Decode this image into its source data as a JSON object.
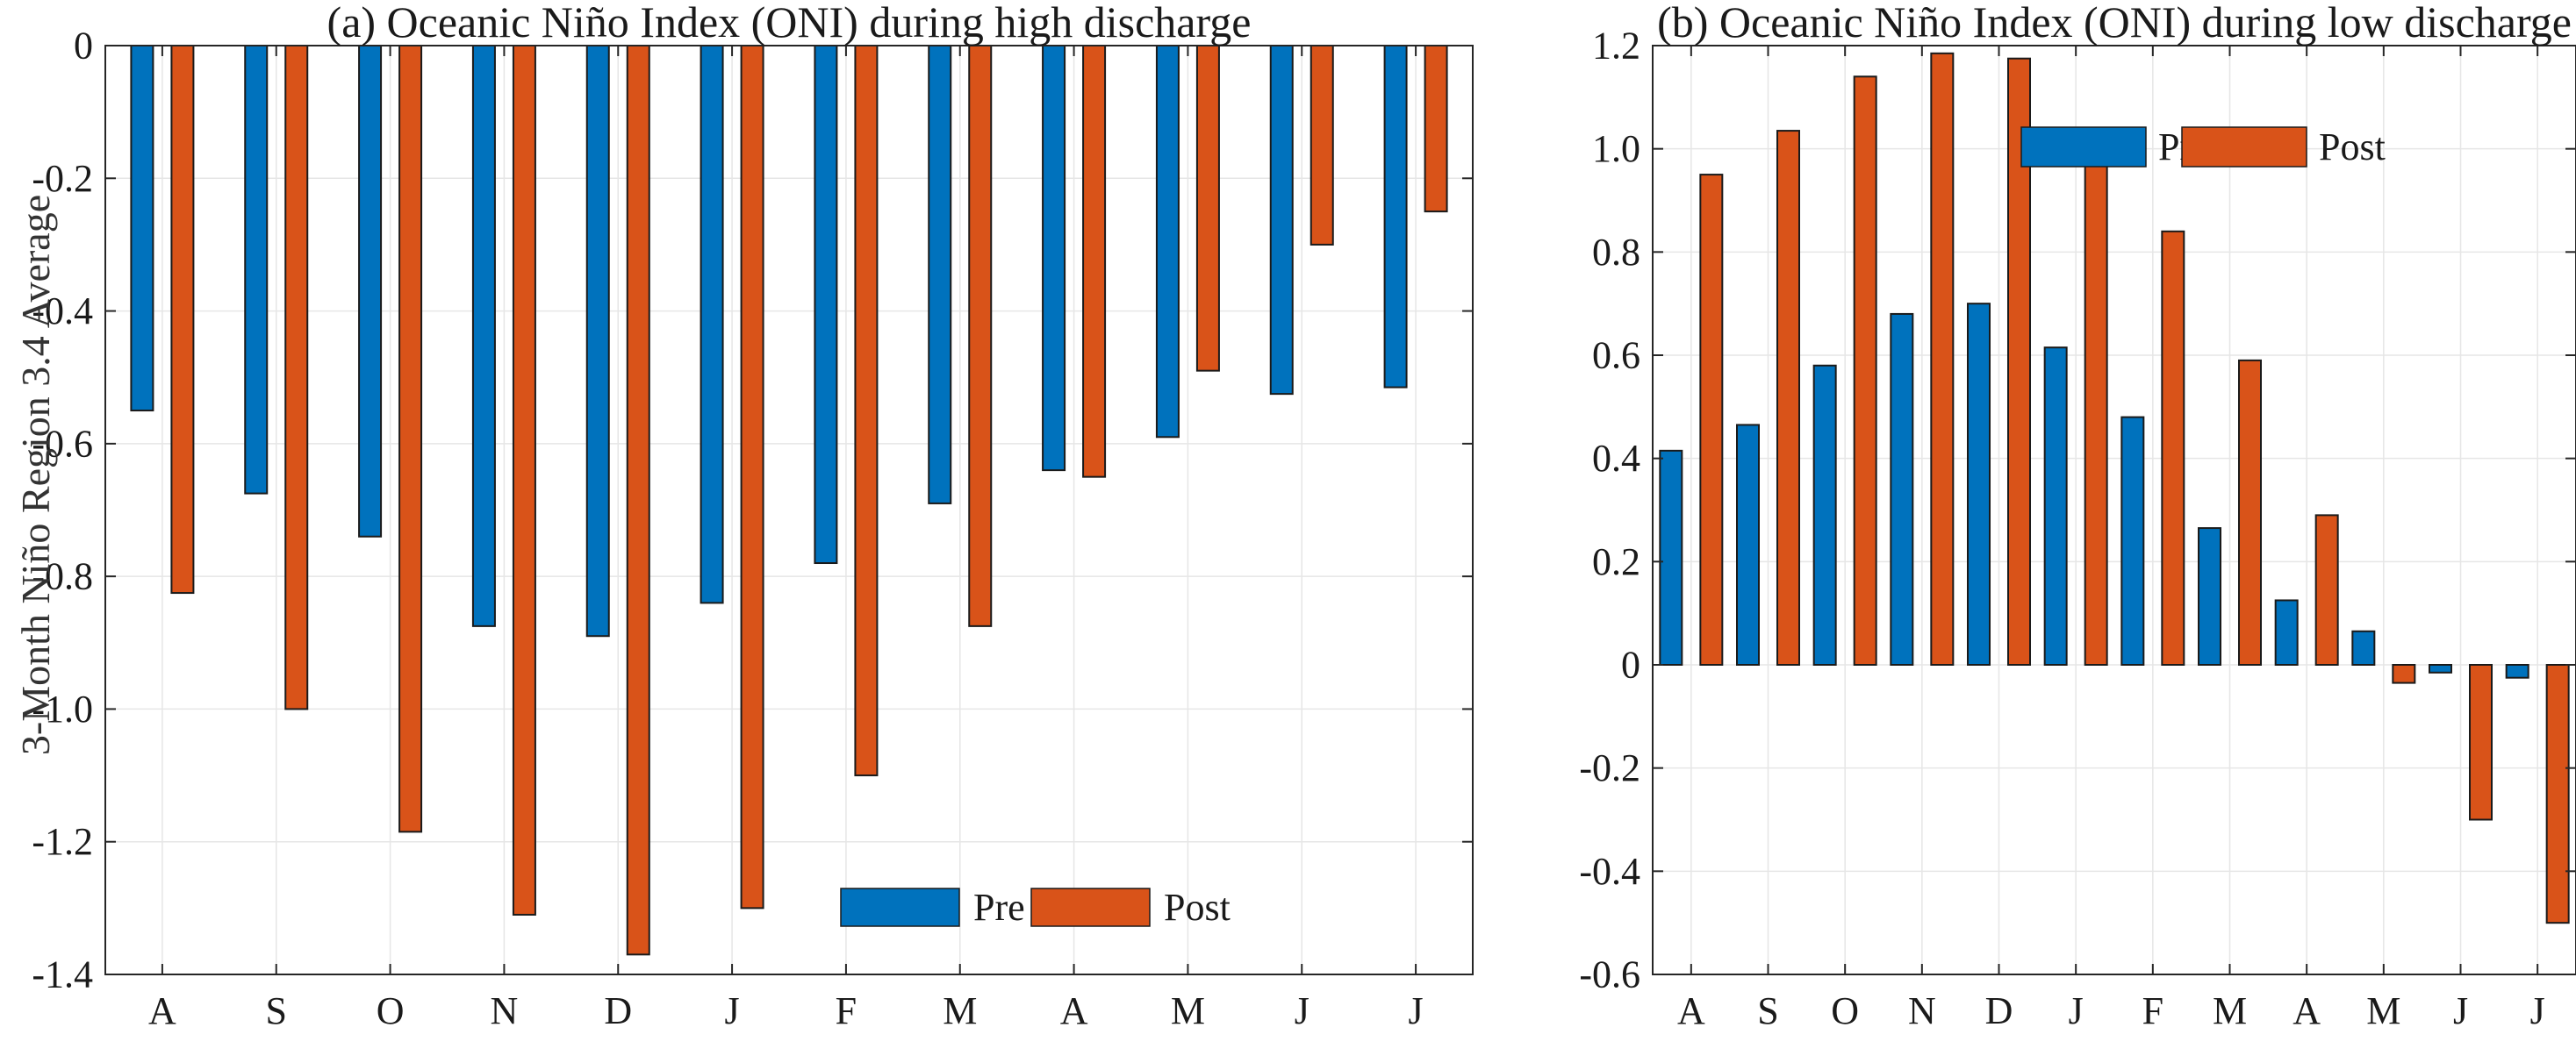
{
  "colors": {
    "pre": "#0072BD",
    "post": "#D95319"
  },
  "chart_data": [
    {
      "type": "bar",
      "title": "(a) Oceanic Niño Index (ONI) during high discharge",
      "xlabel": "",
      "ylabel": "3-Month Niño Region 3.4 Average",
      "ylim": [
        -1.4,
        0
      ],
      "yticks": [
        0,
        -0.2,
        -0.4,
        -0.6,
        -0.8,
        -1.0,
        -1.2,
        -1.4
      ],
      "ytick_labels": [
        "0",
        "-0.2",
        "-0.4",
        "-0.6",
        "-0.8",
        "-1.0",
        "-1.2",
        "-1.4"
      ],
      "categories": [
        "A",
        "S",
        "O",
        "N",
        "D",
        "J",
        "F",
        "M",
        "A",
        "M",
        "J",
        "J"
      ],
      "grid": true,
      "legend_position": "bottom-right",
      "series": [
        {
          "name": "Pre",
          "values": [
            -0.55,
            -0.675,
            -0.74,
            -0.875,
            -0.89,
            -0.84,
            -0.78,
            -0.69,
            -0.64,
            -0.59,
            -0.525,
            -0.515
          ]
        },
        {
          "name": "Post",
          "values": [
            -0.825,
            -1.0,
            -1.185,
            -1.31,
            -1.37,
            -1.3,
            -1.1,
            -0.875,
            -0.65,
            -0.49,
            -0.3,
            -0.25
          ]
        }
      ]
    },
    {
      "type": "bar",
      "title": "(b) Oceanic Niño Index (ONI) during low discharge",
      "xlabel": "",
      "ylabel": "",
      "ylim": [
        -0.6,
        1.2
      ],
      "yticks": [
        1.2,
        1.0,
        0.8,
        0.6,
        0.4,
        0.2,
        0,
        -0.2,
        -0.4,
        -0.6
      ],
      "ytick_labels": [
        "1.2",
        "1.0",
        "0.8",
        "0.6",
        "0.4",
        "0.2",
        "0",
        "-0.2",
        "-0.4",
        "-0.6"
      ],
      "categories": [
        "A",
        "S",
        "O",
        "N",
        "D",
        "J",
        "F",
        "M",
        "A",
        "M",
        "J",
        "J"
      ],
      "grid": true,
      "legend_position": "top-right",
      "series": [
        {
          "name": "Pre",
          "values": [
            0.415,
            0.465,
            0.58,
            0.68,
            0.7,
            0.615,
            0.48,
            0.265,
            0.125,
            0.065,
            -0.015,
            -0.025
          ]
        },
        {
          "name": "Post",
          "values": [
            0.95,
            1.035,
            1.14,
            1.185,
            1.175,
            1.035,
            0.84,
            0.59,
            0.29,
            -0.035,
            -0.3,
            -0.5
          ]
        }
      ]
    }
  ]
}
